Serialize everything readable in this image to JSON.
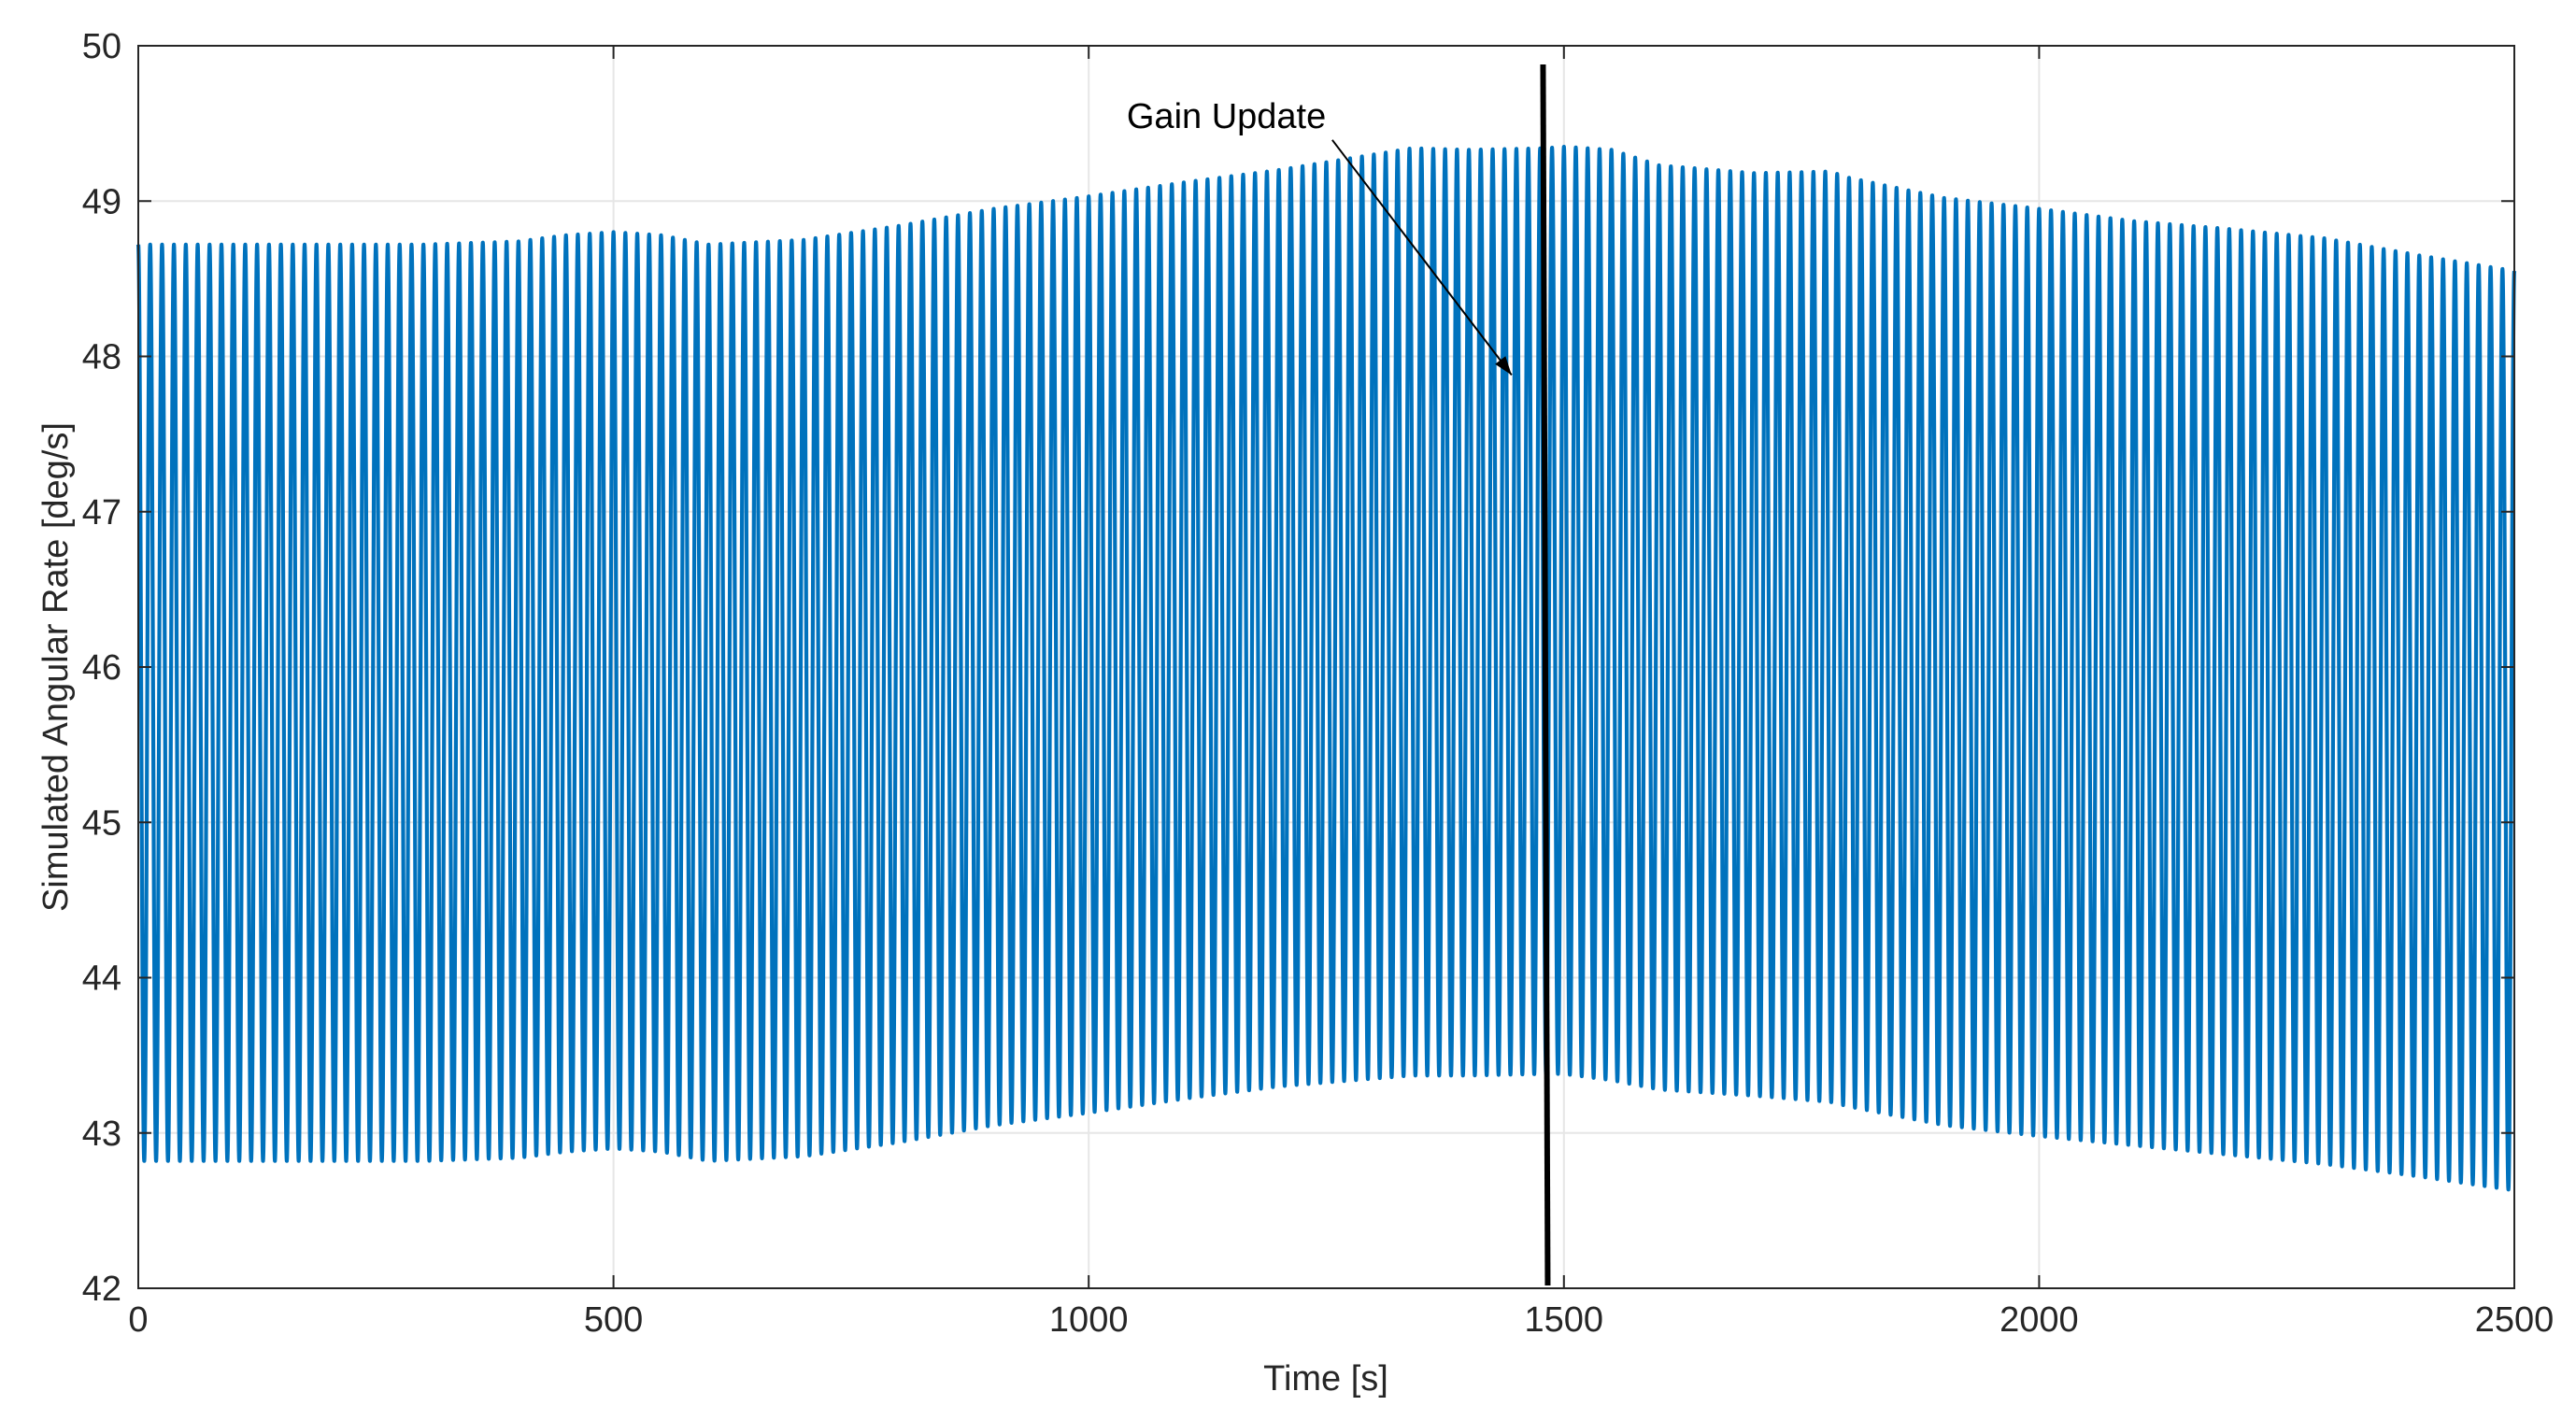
{
  "chart_data": {
    "type": "line",
    "title": "",
    "xlabel": "Time [s]",
    "ylabel": "Simulated Angular Rate [deg/s]",
    "xlim": [
      0,
      2500
    ],
    "ylim": [
      42,
      50
    ],
    "xticks": [
      0,
      500,
      1000,
      1500,
      2000,
      2500
    ],
    "yticks": [
      42,
      43,
      44,
      45,
      46,
      47,
      48,
      49,
      50
    ],
    "grid": true,
    "oscillation_period_s": 12.5,
    "series": [
      {
        "color": "#0072BD",
        "style": "dense oscillation",
        "upper_envelope": {
          "x": [
            0,
            100,
            200,
            300,
            400,
            450,
            500,
            550,
            600,
            700,
            800,
            900,
            1000,
            1100,
            1200,
            1300,
            1340,
            1400,
            1480,
            1500,
            1550,
            1600,
            1700,
            1780,
            1800,
            1900,
            2000,
            2100,
            2200,
            2300,
            2400,
            2500
          ],
          "y": [
            48.72,
            48.72,
            48.72,
            48.72,
            48.74,
            48.78,
            48.8,
            48.78,
            48.72,
            48.75,
            48.84,
            48.95,
            49.03,
            49.12,
            49.2,
            49.3,
            49.34,
            49.33,
            49.34,
            49.35,
            49.33,
            49.23,
            49.18,
            49.19,
            49.15,
            49.02,
            48.95,
            48.87,
            48.82,
            48.76,
            48.65,
            48.55
          ]
        },
        "lower_envelope": {
          "x": [
            0,
            100,
            200,
            300,
            400,
            450,
            500,
            550,
            600,
            700,
            800,
            900,
            1000,
            1100,
            1200,
            1300,
            1340,
            1400,
            1480,
            1500,
            1550,
            1600,
            1700,
            1780,
            1800,
            1900,
            2000,
            2100,
            2200,
            2300,
            2400,
            2500
          ],
          "y": [
            42.82,
            42.82,
            42.82,
            42.82,
            42.84,
            42.88,
            42.9,
            42.88,
            42.82,
            42.85,
            42.94,
            43.05,
            43.13,
            43.22,
            43.3,
            43.35,
            43.37,
            43.37,
            43.38,
            43.38,
            43.34,
            43.28,
            43.24,
            43.2,
            43.17,
            43.05,
            42.98,
            42.92,
            42.86,
            42.8,
            42.72,
            42.63
          ]
        }
      }
    ],
    "vertical_line": {
      "x": 1480,
      "y_range": [
        42,
        49.88
      ],
      "color": "#000000"
    },
    "annotations": [
      {
        "text": "Gain Update",
        "text_x": 1040,
        "text_y": 49.55,
        "arrow_to_x": 1445,
        "arrow_to_y": 47.88
      }
    ]
  }
}
